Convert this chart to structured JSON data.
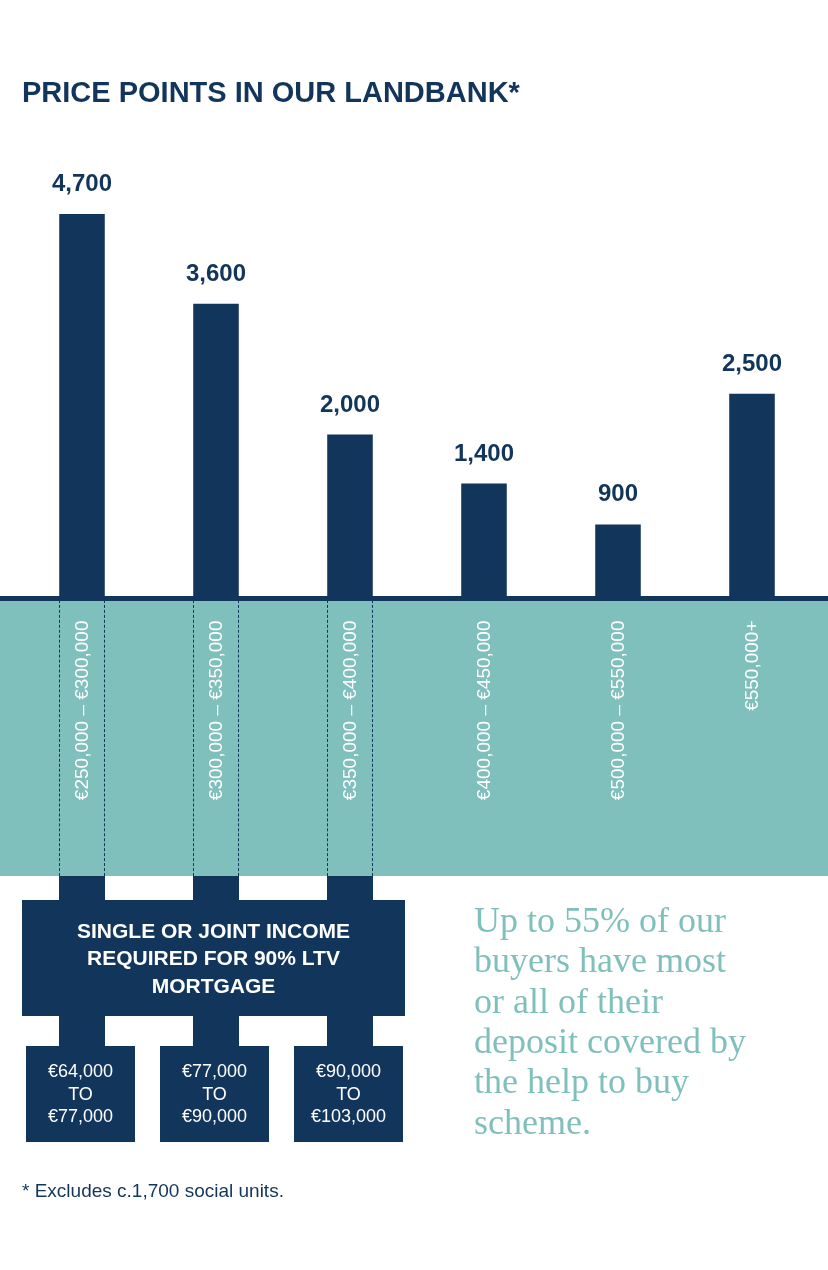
{
  "chart_data": {
    "type": "bar",
    "title": "PRICE POINTS IN OUR LANDBANK*",
    "categories": [
      "€250,000 – €300,000",
      "€300,000 – €350,000",
      "€350,000 – €400,000",
      "€400,000 – €450,000",
      "€500,000 – €550,000",
      "€550,000+"
    ],
    "values": [
      4700,
      3600,
      2000,
      1400,
      900,
      2500
    ],
    "color": "#12355b",
    "value_labels": [
      "4,700",
      "3,600",
      "2,000",
      "1,400",
      "900",
      "2,500"
    ],
    "annotations": [
      "SINGLE OR JOINT INCOME REQUIRED FOR 90% LTV MORTGAGE",
      "€64,000 TO €77,000",
      "€77,000 TO €90,000",
      "€90,000 TO €103,000",
      "Up to 55% of our buyers have most or all of their deposit covered by the help to buy scheme.",
      "* Excludes c.1,700 social units."
    ]
  }
}
